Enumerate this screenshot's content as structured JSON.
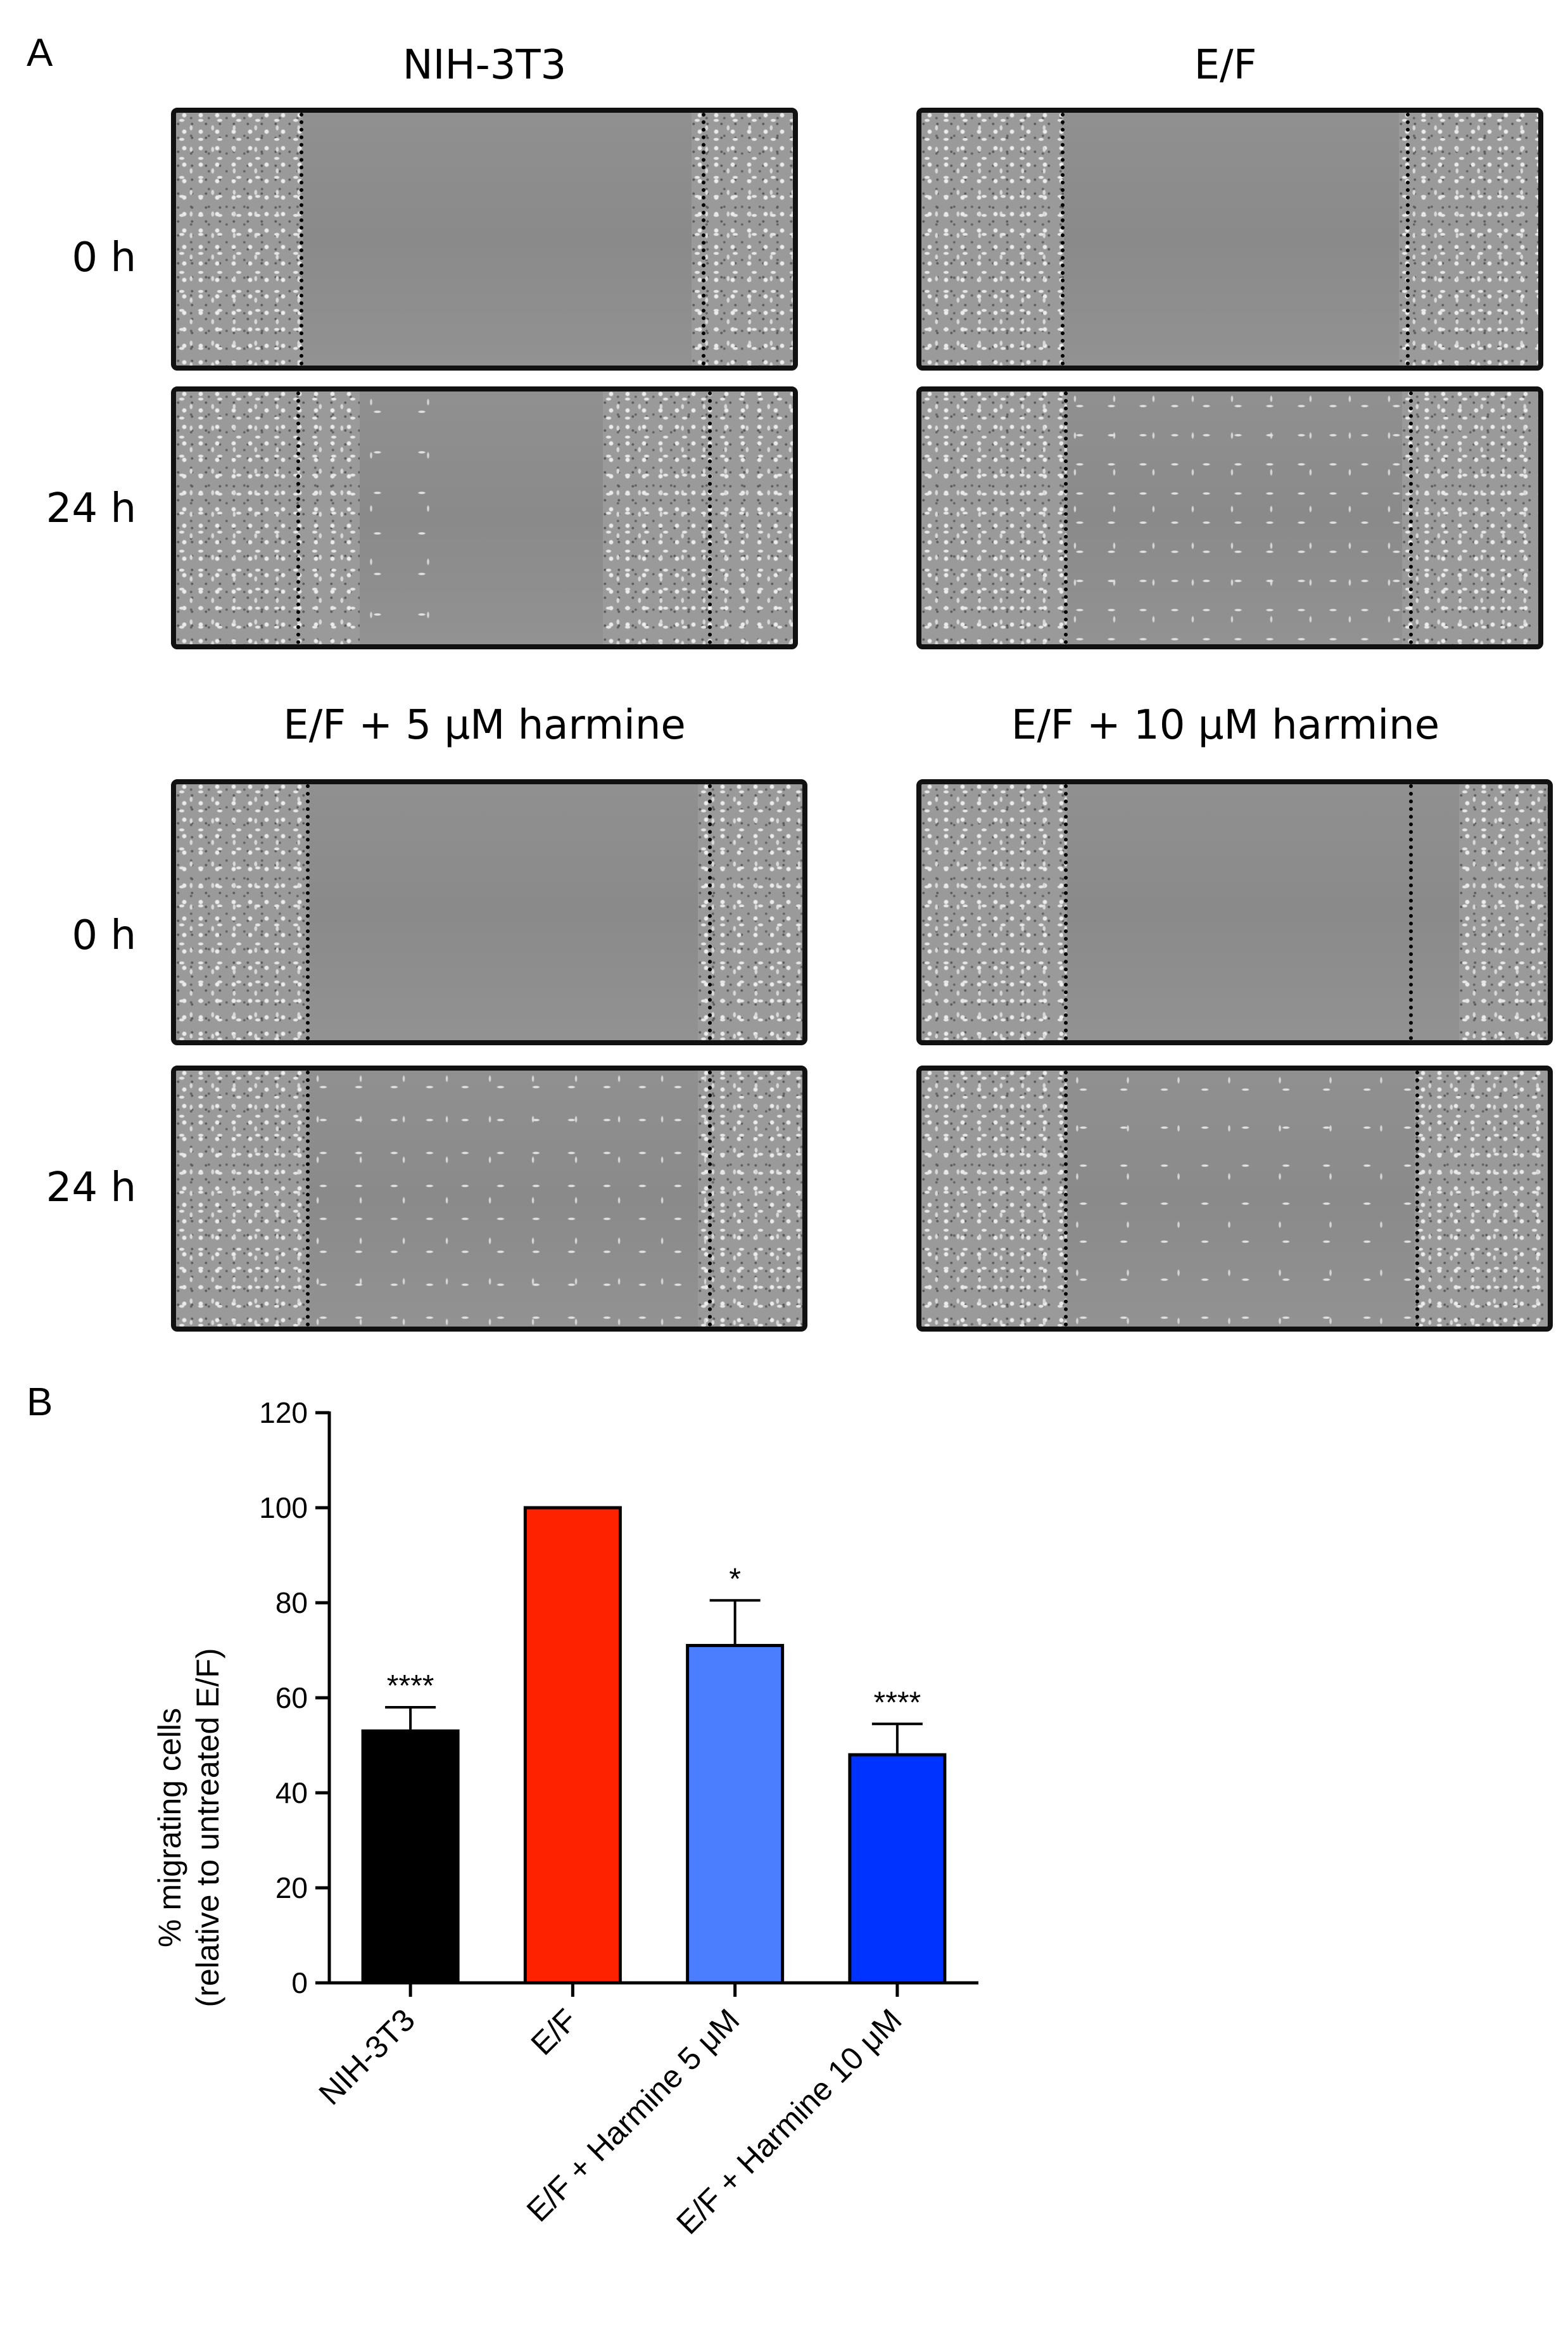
{
  "panel_a": {
    "letter": "A",
    "columns": [
      "NIH-3T3",
      "E/F",
      "E/F + 5 μM harmine",
      "E/F + 10 μM harmine"
    ],
    "rows": [
      "0 h",
      "24 h"
    ]
  },
  "panel_b": {
    "letter": "B"
  },
  "chart_data": {
    "type": "bar",
    "categories": [
      "NIH-3T3",
      "E/F",
      "E/F + Harmine 5 μM",
      "E/F + Harmine 10 μM"
    ],
    "values": [
      53,
      100,
      71,
      48
    ],
    "errors": [
      5,
      0,
      9.5,
      6.5
    ],
    "significance": [
      "****",
      "",
      "*",
      "****"
    ],
    "colors": [
      "#000000",
      "#ff2200",
      "#4a7dff",
      "#0033ff"
    ],
    "ylabel_line1": "% migrating cells",
    "ylabel_line2": "(relative to untreated E/F)",
    "ylim": [
      0,
      120
    ],
    "yticks": [
      0,
      20,
      40,
      60,
      80,
      100,
      120
    ]
  }
}
